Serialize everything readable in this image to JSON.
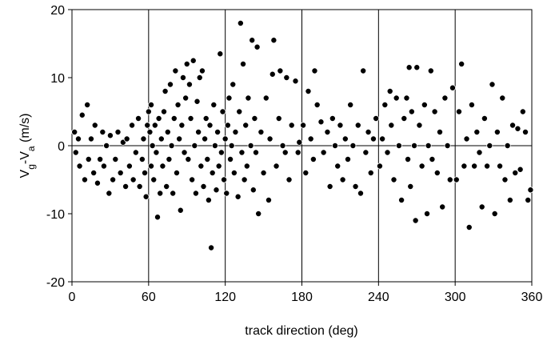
{
  "chart_data": {
    "type": "scatter",
    "xlabel": "track direction (deg)",
    "ylabel_parts": [
      "V",
      "g",
      "-V",
      "a",
      " (m/s)"
    ],
    "xlim": [
      0,
      360
    ],
    "ylim": [
      -20,
      20
    ],
    "xticks": [
      0,
      60,
      120,
      180,
      240,
      300,
      360
    ],
    "yticks": [
      -20,
      -10,
      0,
      10,
      20
    ],
    "xgrid": true,
    "reference_line": 0,
    "color": "#000000",
    "x": [
      2,
      3,
      5,
      6,
      8,
      10,
      12,
      13,
      15,
      17,
      18,
      20,
      22,
      24,
      25,
      27,
      29,
      30,
      32,
      34,
      36,
      38,
      40,
      42,
      43,
      45,
      47,
      48,
      50,
      52,
      53,
      55,
      56,
      57,
      58,
      59,
      60,
      61,
      62,
      62,
      63,
      64,
      65,
      66,
      67,
      68,
      69,
      70,
      71,
      72,
      73,
      74,
      75,
      76,
      77,
      78,
      79,
      80,
      81,
      82,
      83,
      84,
      85,
      86,
      87,
      88,
      89,
      90,
      91,
      92,
      93,
      94,
      95,
      96,
      97,
      98,
      99,
      100,
      101,
      102,
      103,
      104,
      105,
      106,
      107,
      108,
      109,
      110,
      111,
      112,
      113,
      114,
      115,
      116,
      117,
      118,
      119,
      120,
      121,
      122,
      123,
      124,
      125,
      126,
      127,
      128,
      130,
      131,
      132,
      133,
      134,
      135,
      136,
      137,
      138,
      140,
      141,
      142,
      143,
      144,
      145,
      146,
      148,
      150,
      152,
      154,
      155,
      157,
      158,
      160,
      162,
      163,
      165,
      167,
      168,
      170,
      172,
      175,
      177,
      178,
      181,
      183,
      185,
      187,
      189,
      190,
      192,
      195,
      197,
      200,
      202,
      204,
      206,
      208,
      210,
      212,
      214,
      216,
      218,
      220,
      222,
      224,
      226,
      228,
      230,
      232,
      234,
      236,
      238,
      241,
      243,
      245,
      247,
      249,
      250,
      252,
      254,
      256,
      258,
      260,
      262,
      263,
      264,
      265,
      266,
      268,
      269,
      270,
      272,
      274,
      276,
      278,
      279,
      281,
      282,
      284,
      286,
      288,
      290,
      292,
      294,
      296,
      298,
      301,
      303,
      305,
      307,
      309,
      311,
      313,
      315,
      317,
      319,
      321,
      323,
      325,
      327,
      329,
      331,
      333,
      335,
      337,
      339,
      341,
      343,
      345,
      347,
      349,
      351,
      353,
      355,
      357,
      359
    ],
    "values": [
      2,
      -1,
      1,
      -3,
      4.5,
      -5,
      6,
      -2,
      1,
      -4,
      3,
      -5.5,
      -2,
      2,
      -3,
      0,
      -7,
      1.5,
      -5,
      -2,
      2,
      -4,
      0.5,
      -6,
      1,
      -3,
      3,
      -5,
      -1,
      4,
      -6,
      -2,
      1,
      -4,
      -7.5,
      3,
      5,
      2,
      -3,
      6,
      0,
      -5,
      3,
      -1,
      -10.5,
      4,
      -7,
      1,
      -3,
      5,
      8,
      -6,
      2,
      -2,
      9,
      0,
      -7,
      4,
      11,
      -4,
      6,
      1,
      -9.5,
      3,
      10,
      -1,
      7,
      12,
      -2,
      9,
      4,
      -5,
      12.5,
      0,
      -7,
      6.5,
      2,
      10,
      -3,
      11,
      -6,
      1,
      4,
      -2,
      -8,
      3,
      -15,
      -4,
      6,
      0,
      -6.5,
      2,
      -3,
      13.5,
      -1,
      5,
      -5,
      1,
      -7,
      3,
      7,
      -2,
      0,
      9,
      -4,
      2,
      -7.5,
      5,
      18,
      -1,
      12,
      -5,
      3,
      -3,
      7,
      0,
      15.5,
      -6.5,
      4,
      -1,
      14.5,
      -10,
      2,
      -4,
      7,
      -8,
      1,
      10.5,
      15.5,
      -3,
      4,
      11,
      0,
      -1,
      10,
      -5,
      3,
      9.5,
      -1,
      0.5,
      3,
      -4,
      8,
      1,
      -2,
      11,
      6,
      3.5,
      -1,
      2,
      -6,
      4,
      0,
      -3,
      3,
      -5,
      1,
      -2,
      6,
      0,
      -6,
      3,
      -7,
      11,
      -1,
      2,
      -4,
      1,
      4,
      -3,
      1,
      6,
      -1,
      8,
      3,
      -5,
      7,
      0,
      -8,
      4,
      7,
      -2,
      11.5,
      -6,
      5,
      0,
      -11,
      11.5,
      3,
      -3,
      6,
      -10,
      0,
      11,
      -2,
      5,
      -4,
      2,
      -9,
      7,
      0,
      -5,
      8.5,
      -5,
      5,
      12,
      -3,
      1,
      -12,
      6,
      -3,
      2,
      -1,
      -9,
      4,
      -3,
      0,
      9,
      -10,
      2,
      -3,
      7,
      -5,
      0,
      -8,
      3,
      -4,
      2.5,
      -3.5,
      5,
      2,
      -8,
      -6.5
    ]
  }
}
